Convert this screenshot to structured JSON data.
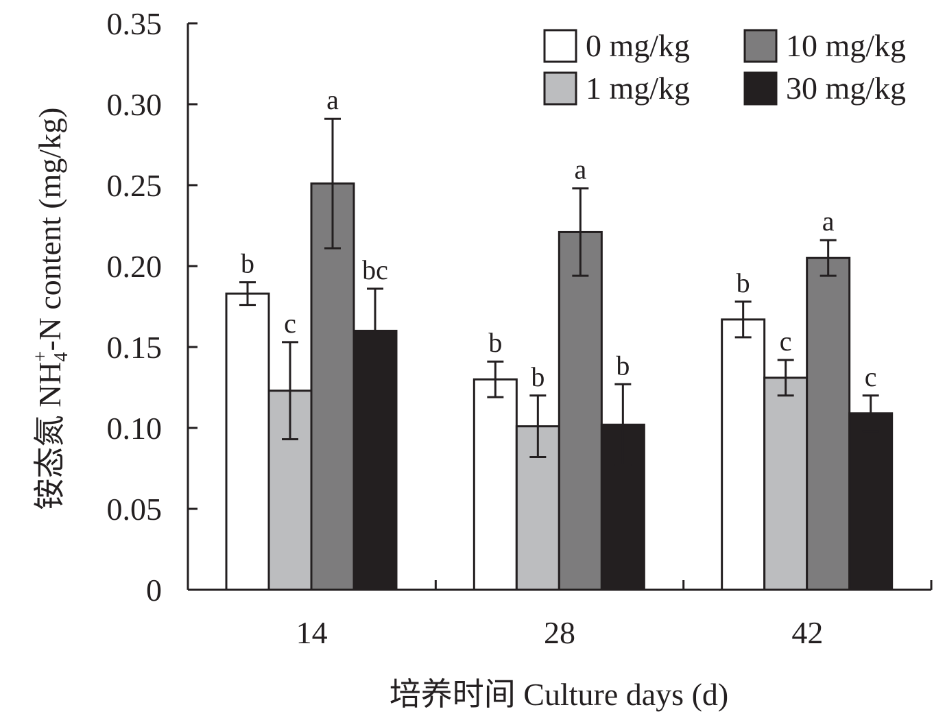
{
  "chart_data": {
    "type": "bar",
    "ylabel": "铵态氮  NH4+-N content (mg/kg)",
    "ylabel_parts": {
      "prefix": "铵态氮  NH",
      "sub": "4",
      "sup": "+",
      "suffix": "-N content (mg/kg)"
    },
    "xlabel": "培养时间 Culture days (d)",
    "ylim": [
      0,
      0.35
    ],
    "y_ticks": [
      {
        "value": 0,
        "label": "0"
      },
      {
        "value": 0.05,
        "label": "0.05"
      },
      {
        "value": 0.1,
        "label": "0.10"
      },
      {
        "value": 0.15,
        "label": "0.15"
      },
      {
        "value": 0.2,
        "label": "0.20"
      },
      {
        "value": 0.25,
        "label": "0.25"
      },
      {
        "value": 0.3,
        "label": "0.30"
      },
      {
        "value": 0.35,
        "label": "0.35"
      }
    ],
    "categories": [
      "14",
      "28",
      "42"
    ],
    "legend_position": "top-right",
    "series": [
      {
        "name": "0 mg/kg",
        "color": "#ffffff",
        "values": [
          0.183,
          0.13,
          0.167
        ],
        "errors": [
          0.007,
          0.011,
          0.011
        ],
        "labels": [
          "b",
          "b",
          "b"
        ]
      },
      {
        "name": "1 mg/kg",
        "color": "#bcbdbf",
        "values": [
          0.123,
          0.101,
          0.131
        ],
        "errors": [
          0.03,
          0.019,
          0.011
        ],
        "labels": [
          "c",
          "b",
          "c"
        ]
      },
      {
        "name": "10 mg/kg",
        "color": "#7d7c7d",
        "values": [
          0.251,
          0.221,
          0.205
        ],
        "errors": [
          0.04,
          0.027,
          0.011
        ],
        "labels": [
          "a",
          "a",
          "a"
        ]
      },
      {
        "name": "30 mg/kg",
        "color": "#231f20",
        "values": [
          0.16,
          0.102,
          0.109
        ],
        "errors": [
          0.026,
          0.025,
          0.011
        ],
        "labels": [
          "bc",
          "b",
          "c"
        ]
      }
    ]
  }
}
